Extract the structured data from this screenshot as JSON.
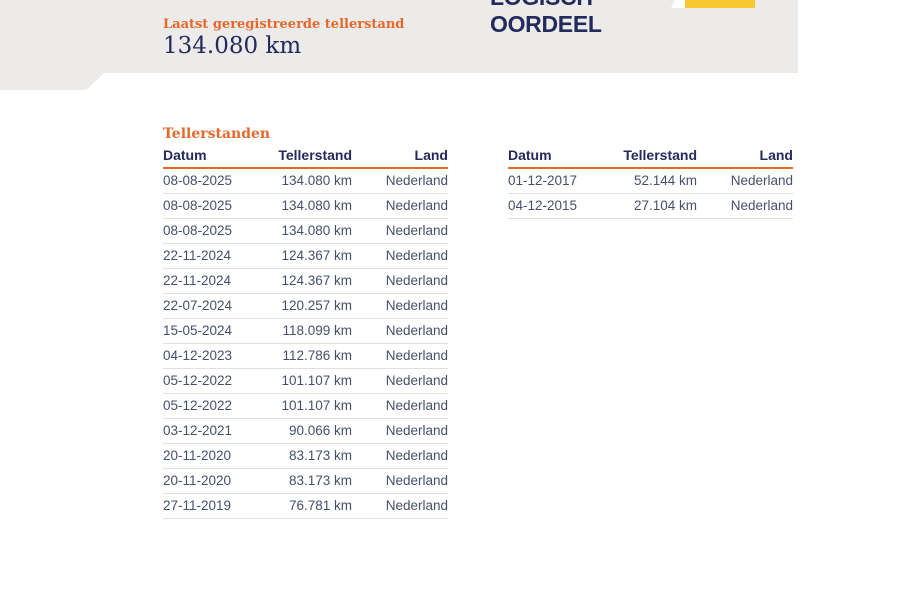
{
  "colors": {
    "accent_orange": "#e5692b",
    "heading_navy": "#232a5c",
    "row_text": "#47506a",
    "band_gray": "#edeaea",
    "badge_yellow": "#f8c832",
    "separator_gray": "#e2dfdf"
  },
  "header": {
    "last_reading_label": "Laatst geregistreerde tellerstand",
    "last_reading_value": "134.080 km",
    "judgement_line1": "LOGISCH",
    "judgement_line2": "OORDEEL"
  },
  "section": {
    "title": "Tellerstanden"
  },
  "tables": [
    {
      "headers": [
        "Datum",
        "Tellerstand",
        "Land"
      ],
      "rows": [
        [
          "08-08-2025",
          "134.080 km",
          "Nederland"
        ],
        [
          "08-08-2025",
          "134.080 km",
          "Nederland"
        ],
        [
          "08-08-2025",
          "134.080 km",
          "Nederland"
        ],
        [
          "22-11-2024",
          "124.367 km",
          "Nederland"
        ],
        [
          "22-11-2024",
          "124.367 km",
          "Nederland"
        ],
        [
          "22-07-2024",
          "120.257 km",
          "Nederland"
        ],
        [
          "15-05-2024",
          "118.099 km",
          "Nederland"
        ],
        [
          "04-12-2023",
          "112.786 km",
          "Nederland"
        ],
        [
          "05-12-2022",
          "101.107 km",
          "Nederland"
        ],
        [
          "05-12-2022",
          "101.107 km",
          "Nederland"
        ],
        [
          "03-12-2021",
          "90.066 km",
          "Nederland"
        ],
        [
          "20-11-2020",
          "83.173 km",
          "Nederland"
        ],
        [
          "20-11-2020",
          "83.173 km",
          "Nederland"
        ],
        [
          "27-11-2019",
          "76.781 km",
          "Nederland"
        ]
      ]
    },
    {
      "headers": [
        "Datum",
        "Tellerstand",
        "Land"
      ],
      "rows": [
        [
          "01-12-2017",
          "52.144 km",
          "Nederland"
        ],
        [
          "04-12-2015",
          "27.104 km",
          "Nederland"
        ]
      ]
    }
  ]
}
